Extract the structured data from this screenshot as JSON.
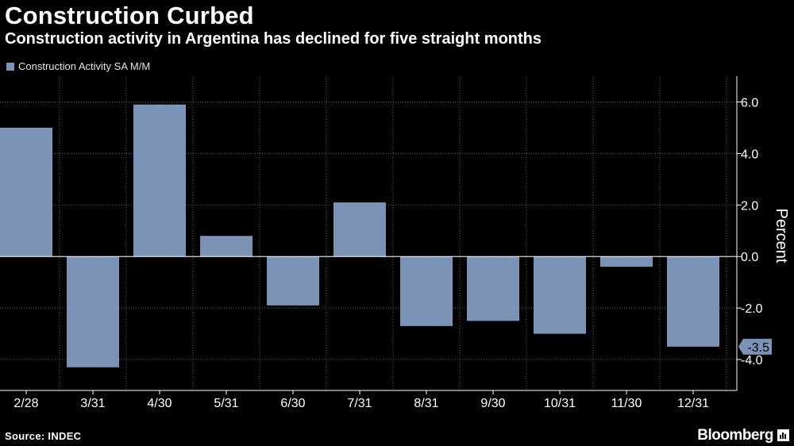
{
  "header": {
    "title": "Construction Curbed",
    "subtitle": "Construction activity in Argentina has declined for five straight months"
  },
  "legend": {
    "label": "Construction Activity SA M/M",
    "color": "#7b93b7"
  },
  "footer": {
    "source": "Source: INDEC",
    "brand": "Bloomberg"
  },
  "chart_data": {
    "type": "bar",
    "title": "Construction Curbed",
    "subtitle": "Construction activity in Argentina has declined for five straight months",
    "xlabel": "",
    "ylabel": "Percent",
    "categories": [
      "2/28",
      "3/31",
      "4/30",
      "5/31",
      "6/30",
      "7/31",
      "8/31",
      "9/30",
      "10/31",
      "11/30",
      "12/31"
    ],
    "series": [
      {
        "name": "Construction Activity SA M/M",
        "values": [
          5.0,
          -4.3,
          5.9,
          0.8,
          -1.9,
          2.1,
          -2.7,
          -2.5,
          -3.0,
          -0.4,
          -3.5
        ]
      }
    ],
    "ylim": [
      -5.2,
      7.0
    ],
    "yticks": [
      6.0,
      4.0,
      2.0,
      0.0,
      -2.0,
      -4.0
    ],
    "ytick_labels": [
      "6.0",
      "4.0",
      "2.0",
      "0.0",
      "-2.0",
      "-4.0"
    ],
    "last_value_label": "-3.5",
    "grid": true,
    "legend_position": "top-left"
  }
}
